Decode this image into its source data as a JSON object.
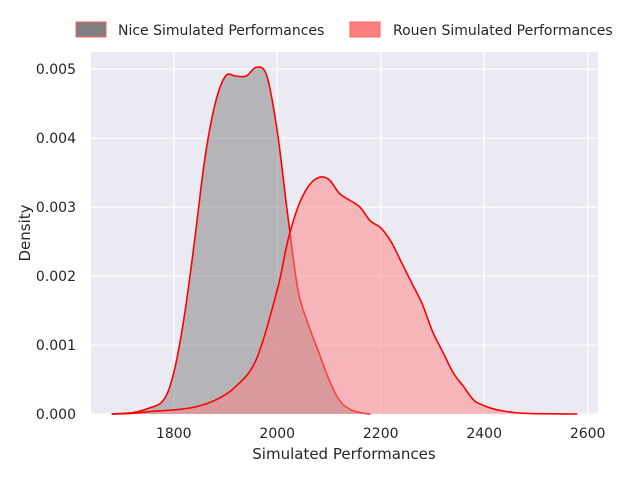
{
  "chart_data": {
    "type": "area",
    "xlabel": "Simulated Performances",
    "ylabel": "Density",
    "xlim": [
      1640,
      2620
    ],
    "ylim": [
      0,
      0.00525
    ],
    "xticks": [
      1800,
      2000,
      2200,
      2400,
      2600
    ],
    "xtick_labels": [
      "1800",
      "2000",
      "2200",
      "2400",
      "2600"
    ],
    "yticks": [
      0,
      0.001,
      0.002,
      0.003,
      0.004,
      0.005
    ],
    "ytick_labels": [
      "0.000",
      "0.001",
      "0.002",
      "0.003",
      "0.004",
      "0.005"
    ],
    "grid": true,
    "legend_position": "top",
    "series": [
      {
        "name": "Nice Simulated Performances",
        "fill": "#808080",
        "line": "#ff0000",
        "x": [
          1680,
          1720,
          1750,
          1780,
          1800,
          1820,
          1840,
          1860,
          1880,
          1900,
          1920,
          1940,
          1960,
          1980,
          2000,
          2020,
          2040,
          2060,
          2080,
          2100,
          2120,
          2140,
          2160,
          2180
        ],
        "y": [
          0,
          2e-05,
          8e-05,
          0.0002,
          0.0006,
          0.0014,
          0.0025,
          0.0037,
          0.0045,
          0.0049,
          0.0049,
          0.0049,
          0.00503,
          0.0049,
          0.0041,
          0.0029,
          0.0018,
          0.0013,
          0.0009,
          0.0005,
          0.0002,
          7e-05,
          2e-05,
          0
        ]
      },
      {
        "name": "Rouen Simulated Performances",
        "fill": "#ff7f7f",
        "line": "#ff0000",
        "x": [
          1680,
          1720,
          1760,
          1800,
          1840,
          1880,
          1920,
          1960,
          2000,
          2020,
          2040,
          2060,
          2080,
          2100,
          2120,
          2140,
          2160,
          2180,
          2200,
          2220,
          2240,
          2260,
          2280,
          2300,
          2320,
          2340,
          2360,
          2380,
          2400,
          2420,
          2440,
          2460,
          2480,
          2500,
          2540,
          2580
        ],
        "y": [
          0,
          1e-05,
          4e-05,
          6e-05,
          0.0001,
          0.0002,
          0.0004,
          0.0008,
          0.0018,
          0.0025,
          0.003,
          0.0033,
          0.00343,
          0.0034,
          0.0032,
          0.0031,
          0.003,
          0.0028,
          0.0027,
          0.0025,
          0.0022,
          0.0019,
          0.0016,
          0.0012,
          0.0009,
          0.0006,
          0.0004,
          0.0002,
          0.00012,
          7e-05,
          4e-05,
          2e-05,
          1e-05,
          5e-06,
          2e-06,
          0
        ]
      }
    ]
  }
}
